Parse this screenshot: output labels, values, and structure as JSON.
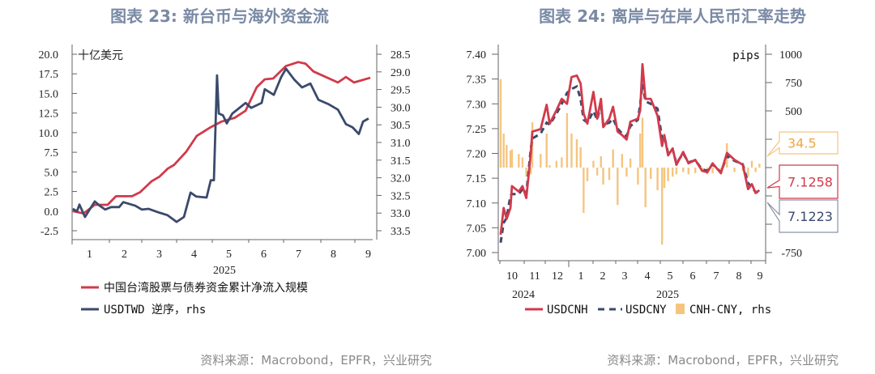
{
  "left": {
    "title": "图表 23: 新台币与海外资金流",
    "source": "资料来源：Macrobond，EPFR，兴业研究"
  },
  "right": {
    "title": "图表 24: 离岸与在岸人民币汇率走势",
    "source": "资料来源：Macrobond，EPFR，兴业研究"
  },
  "chart_data": [
    {
      "type": "line",
      "title": "图表 23: 新台币与海外资金流",
      "ylabel": "十亿美元",
      "xlabel": "2025",
      "x_unit": "month of 2025",
      "x_ticks": [
        "1",
        "2",
        "3",
        "4",
        "5",
        "6",
        "7",
        "8",
        "9"
      ],
      "ylim": [
        -2.5,
        20.0
      ],
      "yticks": [
        "20.0",
        "17.5",
        "15.0",
        "12.5",
        "10.0",
        "7.5",
        "5.0",
        "2.5",
        "0.0",
        "-2.5"
      ],
      "y2lim": [
        28.5,
        33.5
      ],
      "y2_inverted": true,
      "y2ticks": [
        "28.5",
        "29.0",
        "29.5",
        "30.0",
        "30.5",
        "31.0",
        "31.5",
        "32.0",
        "32.5",
        "33.0",
        "33.5"
      ],
      "legend_position": "bottom",
      "colors": {
        "flow": "#d13a4b",
        "twd": "#3b4a6b"
      },
      "series": [
        {
          "name": "中国台湾股票与债券资金累计净流入规模",
          "axis": "left",
          "x": [
            1.02,
            1.33,
            1.65,
            2.02,
            2.26,
            2.72,
            2.95,
            3.28,
            3.51,
            3.74,
            3.93,
            4.28,
            4.58,
            4.98,
            5.28,
            5.67,
            5.98,
            6.3,
            6.53,
            6.77,
            7.14,
            7.49,
            7.7,
            7.93,
            8.63,
            8.86,
            9.09,
            9.56
          ],
          "values": [
            0.0,
            -0.3,
            0.8,
            0.8,
            1.9,
            1.9,
            2.4,
            3.8,
            4.4,
            5.4,
            5.9,
            7.6,
            9.6,
            10.7,
            11.4,
            11.9,
            12.8,
            15.8,
            16.8,
            16.9,
            18.5,
            19.0,
            18.8,
            17.8,
            16.4,
            17.1,
            16.4,
            17.0
          ]
        },
        {
          "name": "USDTWD 逆序，rhs",
          "axis": "right",
          "x": [
            1.02,
            1.14,
            1.21,
            1.37,
            1.65,
            1.79,
            1.95,
            2.12,
            2.35,
            2.47,
            2.81,
            3.0,
            3.19,
            3.51,
            3.74,
            4.0,
            4.21,
            4.4,
            4.56,
            4.86,
            4.98,
            5.07,
            5.16,
            5.21,
            5.33,
            5.44,
            5.6,
            5.98,
            6.14,
            6.44,
            6.53,
            6.79,
            7.0,
            7.14,
            7.37,
            7.6,
            7.84,
            8.07,
            8.35,
            8.63,
            8.86,
            9.05,
            9.23,
            9.35,
            9.51
          ],
          "values": [
            32.88,
            32.95,
            32.76,
            33.11,
            32.67,
            32.79,
            32.9,
            32.83,
            32.83,
            32.69,
            32.79,
            32.9,
            32.88,
            32.99,
            33.06,
            33.25,
            33.11,
            32.42,
            32.53,
            32.56,
            32.07,
            32.07,
            29.1,
            30.18,
            30.23,
            30.46,
            30.18,
            29.88,
            30.02,
            29.88,
            29.49,
            29.65,
            29.15,
            28.91,
            29.21,
            29.44,
            29.33,
            29.79,
            29.91,
            30.07,
            30.48,
            30.57,
            30.76,
            30.41,
            30.32
          ]
        }
      ]
    },
    {
      "type": "line",
      "title": "图表 24: 离岸与在岸人民币汇率走势",
      "x_ticks": [
        "10",
        "11",
        "12",
        "1",
        "2",
        "3",
        "4",
        "5",
        "6",
        "7",
        "8",
        "9"
      ],
      "x_year_labels": [
        "2024",
        "2025"
      ],
      "ylim": [
        7.0,
        7.4
      ],
      "yticks": [
        "7.40",
        "7.35",
        "7.30",
        "7.25",
        "7.20",
        "7.15",
        "7.10",
        "7.05",
        "7.00"
      ],
      "y2label": "pips",
      "y2lim": [
        -750,
        1000
      ],
      "y2ticks": [
        "1000",
        "750",
        "500",
        "",
        "",
        "",
        "",
        "-750"
      ],
      "legend_position": "bottom",
      "colors": {
        "cnh": "#d13a4b",
        "cny": "#3b4a6b",
        "spread": "#f5c57f"
      },
      "callouts": [
        "34.5",
        "7.1258",
        "7.1223"
      ],
      "x": [
        "2024-10-02",
        "2024-10-06",
        "2024-10-10",
        "2024-10-15",
        "2024-10-17",
        "2024-10-26",
        "2024-10-31",
        "2024-11-05",
        "2024-11-11",
        "2024-11-13",
        "2024-11-24",
        "2024-12-02",
        "2024-12-06",
        "2024-12-15",
        "2024-12-22",
        "2024-12-29",
        "2025-01-04",
        "2025-01-11",
        "2025-01-16",
        "2025-01-20",
        "2025-01-25",
        "2025-02-02",
        "2025-02-07",
        "2025-02-12",
        "2025-02-15",
        "2025-02-23",
        "2025-02-28",
        "2025-03-06",
        "2025-03-12",
        "2025-03-18",
        "2025-03-23",
        "2025-04-02",
        "2025-04-05",
        "2025-04-08",
        "2025-04-12",
        "2025-04-19",
        "2025-04-28",
        "2025-05-04",
        "2025-05-07",
        "2025-05-12",
        "2025-05-18",
        "2025-05-23",
        "2025-06-01",
        "2025-06-08",
        "2025-06-17",
        "2025-06-26",
        "2025-07-03",
        "2025-07-10",
        "2025-07-21",
        "2025-07-29",
        "2025-08-08",
        "2025-08-19",
        "2025-08-26",
        "2025-08-31",
        "2025-09-05",
        "2025-09-10"
      ],
      "series": [
        {
          "name": "USDCNH",
          "axis": "left",
          "values": [
            7.036,
            7.09,
            7.068,
            7.09,
            7.134,
            7.123,
            7.134,
            7.11,
            7.2,
            7.244,
            7.249,
            7.298,
            7.26,
            7.287,
            7.31,
            7.3,
            7.354,
            7.357,
            7.341,
            7.28,
            7.26,
            7.324,
            7.27,
            7.31,
            7.253,
            7.27,
            7.294,
            7.244,
            7.237,
            7.228,
            7.264,
            7.27,
            7.287,
            7.38,
            7.31,
            7.31,
            7.276,
            7.215,
            7.237,
            7.196,
            7.21,
            7.177,
            7.203,
            7.18,
            7.187,
            7.165,
            7.162,
            7.18,
            7.16,
            7.201,
            7.187,
            7.177,
            7.128,
            7.138,
            7.12,
            7.1258
          ]
        },
        {
          "name": "USDCNY",
          "axis": "left",
          "values": [
            7.02,
            7.06,
            7.07,
            7.115,
            7.118,
            7.118,
            7.128,
            7.118,
            7.21,
            7.23,
            7.24,
            7.262,
            7.258,
            7.28,
            7.3,
            7.322,
            7.33,
            7.335,
            7.31,
            7.268,
            7.262,
            7.285,
            7.268,
            7.3,
            7.258,
            7.262,
            7.27,
            7.25,
            7.24,
            7.235,
            7.255,
            7.268,
            7.3,
            7.34,
            7.305,
            7.3,
            7.29,
            7.23,
            7.235,
            7.2,
            7.208,
            7.18,
            7.2,
            7.182,
            7.186,
            7.168,
            7.165,
            7.178,
            7.162,
            7.195,
            7.185,
            7.178,
            7.14,
            7.132,
            7.122,
            7.1223
          ]
        },
        {
          "name": "CNH-CNY, rhs",
          "axis": "right",
          "type": "bar",
          "values": [
            780,
            300,
            200,
            150,
            160,
            120,
            90,
            -80,
            -60,
            400,
            120,
            300,
            20,
            60,
            90,
            480,
            300,
            250,
            180,
            -400,
            -120,
            60,
            -70,
            100,
            -150,
            -110,
            160,
            -330,
            120,
            -80,
            80,
            -150,
            300,
            440,
            -350,
            -100,
            -200,
            -680,
            -180,
            -120,
            -80,
            -60,
            -40,
            -60,
            -50,
            -40,
            -60,
            -50,
            -30,
            215,
            -40,
            -30,
            -80,
            60,
            -40,
            34.5
          ]
        }
      ]
    }
  ]
}
